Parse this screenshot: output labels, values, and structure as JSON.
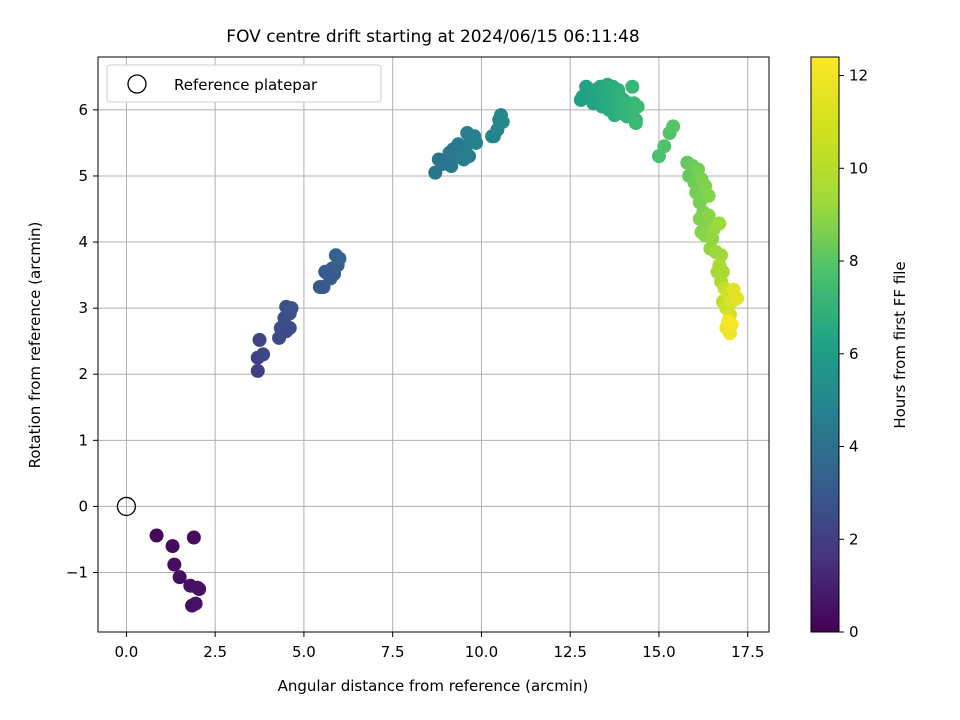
{
  "chart_data": {
    "type": "scatter",
    "title": "FOV centre drift starting at 2024/06/15 06:11:48",
    "xlabel": "Angular distance from reference (arcmin)",
    "ylabel": "Rotation from reference (arcmin)",
    "xlim": [
      -0.8,
      18.1
    ],
    "ylim": [
      -1.9,
      6.8
    ],
    "xticks": [
      "0.0",
      "2.5",
      "5.0",
      "7.5",
      "10.0",
      "12.5",
      "15.0",
      "17.5"
    ],
    "yticks": [
      "−1",
      "0",
      "1",
      "2",
      "3",
      "4",
      "5",
      "6"
    ],
    "grid": true,
    "legend": {
      "placement": "upper-left",
      "entries": [
        "Reference platepar"
      ]
    },
    "reference_point": {
      "x": 0,
      "y": 0
    },
    "colorbar": {
      "label": "Hours from first FF file",
      "range": [
        0,
        12.4
      ],
      "ticks": [
        "0",
        "2",
        "4",
        "6",
        "8",
        "10",
        "12"
      ],
      "colormap": "viridis"
    },
    "points": [
      [
        0.85,
        -0.44,
        0.3
      ],
      [
        1.3,
        -0.6,
        0.35
      ],
      [
        1.9,
        -0.47,
        0.4
      ],
      [
        1.35,
        -0.88,
        0.45
      ],
      [
        1.5,
        -1.07,
        0.5
      ],
      [
        1.8,
        -1.2,
        0.55
      ],
      [
        2.05,
        -1.25,
        0.6
      ],
      [
        1.85,
        -1.5,
        0.5
      ],
      [
        1.95,
        -1.47,
        0.55
      ],
      [
        2.0,
        -1.23,
        0.6
      ],
      [
        3.7,
        2.05,
        2.3
      ],
      [
        3.7,
        2.25,
        2.4
      ],
      [
        3.75,
        2.52,
        2.5
      ],
      [
        3.85,
        2.3,
        2.55
      ],
      [
        4.3,
        2.55,
        2.7
      ],
      [
        4.35,
        2.7,
        2.8
      ],
      [
        4.45,
        2.85,
        2.9
      ],
      [
        4.5,
        3.02,
        3.0
      ],
      [
        4.6,
        2.7,
        2.95
      ],
      [
        4.6,
        2.92,
        3.05
      ],
      [
        4.65,
        3.0,
        3.1
      ],
      [
        4.5,
        2.65,
        2.85
      ],
      [
        5.45,
        3.32,
        3.4
      ],
      [
        5.55,
        3.32,
        3.45
      ],
      [
        5.6,
        3.55,
        3.5
      ],
      [
        5.75,
        3.45,
        3.55
      ],
      [
        5.8,
        3.6,
        3.6
      ],
      [
        5.85,
        3.52,
        3.65
      ],
      [
        5.9,
        3.8,
        3.7
      ],
      [
        5.95,
        3.65,
        3.75
      ],
      [
        6.0,
        3.75,
        3.8
      ],
      [
        5.7,
        3.5,
        3.55
      ],
      [
        8.7,
        5.05,
        4.7
      ],
      [
        8.8,
        5.25,
        4.75
      ],
      [
        8.9,
        5.18,
        4.8
      ],
      [
        9.0,
        5.25,
        4.85
      ],
      [
        9.1,
        5.35,
        4.9
      ],
      [
        9.15,
        5.15,
        4.95
      ],
      [
        9.2,
        5.4,
        5.0
      ],
      [
        9.3,
        5.3,
        5.05
      ],
      [
        9.35,
        5.48,
        5.1
      ],
      [
        9.45,
        5.35,
        5.15
      ],
      [
        9.5,
        5.25,
        5.2
      ],
      [
        9.55,
        5.4,
        5.2
      ],
      [
        9.6,
        5.65,
        5.3
      ],
      [
        9.65,
        5.3,
        5.25
      ],
      [
        9.7,
        5.55,
        5.35
      ],
      [
        9.8,
        5.6,
        5.4
      ],
      [
        9.85,
        5.5,
        5.45
      ],
      [
        10.3,
        5.6,
        5.6
      ],
      [
        10.35,
        5.6,
        5.65
      ],
      [
        10.45,
        5.7,
        5.7
      ],
      [
        10.5,
        5.85,
        5.75
      ],
      [
        10.55,
        5.92,
        5.8
      ],
      [
        10.6,
        5.82,
        5.85
      ],
      [
        12.8,
        6.15,
        7.0
      ],
      [
        12.85,
        6.2,
        7.05
      ],
      [
        12.95,
        6.35,
        7.1
      ],
      [
        13.05,
        6.25,
        7.15
      ],
      [
        13.15,
        6.1,
        7.2
      ],
      [
        13.2,
        6.3,
        7.25
      ],
      [
        13.3,
        6.2,
        7.3
      ],
      [
        13.35,
        6.35,
        7.35
      ],
      [
        13.4,
        6.05,
        7.4
      ],
      [
        13.45,
        6.28,
        7.45
      ],
      [
        13.5,
        6.15,
        7.5
      ],
      [
        13.55,
        6.38,
        7.55
      ],
      [
        13.6,
        6.0,
        7.6
      ],
      [
        13.65,
        6.25,
        7.65
      ],
      [
        13.7,
        6.35,
        7.7
      ],
      [
        13.75,
        5.92,
        7.75
      ],
      [
        13.8,
        6.1,
        7.8
      ],
      [
        13.85,
        6.3,
        7.85
      ],
      [
        13.9,
        6.2,
        7.9
      ],
      [
        13.95,
        5.95,
        7.95
      ],
      [
        14.0,
        6.15,
        8.0
      ],
      [
        14.05,
        6.05,
        8.05
      ],
      [
        14.1,
        5.9,
        8.1
      ],
      [
        14.15,
        6.1,
        8.15
      ],
      [
        14.2,
        6.0,
        8.2
      ],
      [
        14.25,
        6.35,
        8.25
      ],
      [
        14.3,
        6.1,
        8.3
      ],
      [
        14.35,
        5.85,
        8.35
      ],
      [
        14.4,
        6.05,
        8.4
      ],
      [
        14.35,
        5.8,
        8.4
      ],
      [
        15.0,
        5.3,
        8.8
      ],
      [
        15.15,
        5.45,
        8.9
      ],
      [
        15.3,
        5.65,
        9.0
      ],
      [
        15.4,
        5.75,
        9.05
      ],
      [
        15.8,
        5.2,
        9.3
      ],
      [
        15.85,
        5.0,
        9.4
      ],
      [
        15.95,
        5.15,
        9.5
      ],
      [
        16.0,
        4.9,
        9.6
      ],
      [
        16.05,
        4.75,
        9.7
      ],
      [
        16.1,
        5.1,
        9.75
      ],
      [
        16.15,
        4.6,
        9.8
      ],
      [
        16.2,
        4.95,
        9.85
      ],
      [
        16.25,
        4.45,
        9.9
      ],
      [
        16.3,
        4.85,
        9.95
      ],
      [
        16.35,
        4.3,
        10.0
      ],
      [
        16.4,
        4.7,
        10.05
      ],
      [
        16.15,
        4.35,
        10.0
      ],
      [
        16.2,
        4.15,
        10.1
      ],
      [
        16.3,
        4.1,
        10.15
      ],
      [
        16.4,
        4.4,
        10.2
      ],
      [
        16.45,
        3.9,
        10.3
      ],
      [
        16.5,
        4.05,
        10.35
      ],
      [
        16.55,
        4.2,
        10.4
      ],
      [
        16.6,
        3.85,
        10.5
      ],
      [
        16.7,
        4.28,
        10.55
      ],
      [
        16.75,
        3.8,
        10.6
      ],
      [
        16.65,
        3.55,
        10.7
      ],
      [
        16.7,
        3.65,
        10.75
      ],
      [
        16.8,
        3.55,
        10.8
      ],
      [
        16.75,
        3.4,
        10.85
      ],
      [
        16.8,
        3.1,
        11.2
      ],
      [
        16.85,
        3.3,
        11.3
      ],
      [
        16.9,
        3.0,
        11.4
      ],
      [
        16.95,
        3.2,
        11.5
      ],
      [
        17.0,
        2.9,
        11.6
      ],
      [
        17.05,
        3.1,
        11.7
      ],
      [
        17.1,
        3.28,
        11.8
      ],
      [
        17.2,
        3.15,
        11.9
      ],
      [
        16.9,
        2.7,
        12.0
      ],
      [
        17.0,
        2.62,
        12.1
      ],
      [
        17.05,
        2.75,
        12.2
      ],
      [
        16.95,
        2.8,
        12.3
      ]
    ]
  }
}
